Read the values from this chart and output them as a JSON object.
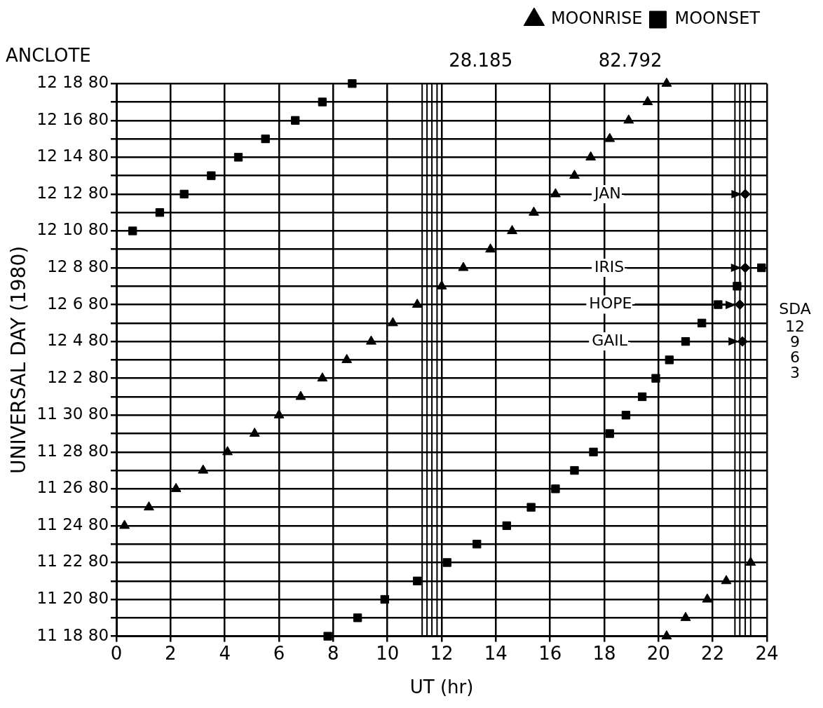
{
  "chart_data": {
    "type": "scatter",
    "orientation": "horizontal",
    "title": "ANCLOTE",
    "xlabel": "UT (hr)",
    "ylabel": "UNIVERSAL DAY (1980)",
    "categories": [
      "12 18 80",
      null,
      "12 16 80",
      null,
      "12 14 80",
      null,
      "12 12 80",
      null,
      "12 10 80",
      null,
      "12 8 80",
      null,
      "12 6 80",
      null,
      "12 4 80",
      null,
      "12 2 80",
      null,
      "11 30 80",
      null,
      "11 28 80",
      null,
      "11 26 80",
      null,
      "11 24 80",
      null,
      "11 22 80",
      null,
      "11 20 80",
      null,
      "11 18 80"
    ],
    "series": [
      {
        "name": "MOONRISE",
        "color": "#000000",
        "marker": "triangle",
        "values": [
          20.3,
          19.6,
          18.9,
          18.2,
          17.5,
          16.9,
          16.2,
          15.4,
          14.6,
          13.8,
          12.8,
          12.0,
          11.1,
          10.2,
          9.4,
          8.5,
          7.6,
          6.8,
          6.0,
          5.1,
          4.1,
          3.2,
          2.2,
          1.2,
          0.3,
          null,
          23.4,
          22.5,
          21.8,
          21.0,
          20.3
        ]
      },
      {
        "name": "MOONSET",
        "color": "#000000",
        "marker": "square",
        "values": [
          8.7,
          7.6,
          6.6,
          5.5,
          4.5,
          3.5,
          2.5,
          1.6,
          0.6,
          null,
          23.8,
          22.9,
          22.2,
          21.6,
          21.0,
          20.4,
          19.9,
          19.4,
          18.8,
          18.2,
          17.6,
          16.9,
          16.2,
          15.3,
          14.4,
          13.3,
          12.2,
          11.1,
          9.9,
          8.9,
          7.8
        ]
      },
      {
        "color": "#000000",
        "marker": "diamond",
        "values": [
          null,
          null,
          null,
          null,
          null,
          null,
          23.2,
          null,
          null,
          null,
          23.2,
          null,
          23.0,
          null,
          23.1,
          null,
          null,
          null,
          null,
          null,
          null,
          null,
          null,
          null,
          null,
          null,
          null,
          null,
          null,
          null,
          null
        ]
      }
    ],
    "xlim": [
      0,
      24
    ],
    "xticks": [
      0,
      2,
      4,
      6,
      8,
      10,
      12,
      14,
      16,
      18,
      20,
      22,
      24
    ],
    "grid": true,
    "legend": "top right",
    "ref_lines": [
      {
        "axis": "x",
        "value": 11.28,
        "color": "#000000"
      },
      {
        "axis": "x",
        "value": 11.46,
        "color": "#000000"
      },
      {
        "axis": "x",
        "value": 11.64,
        "color": "#000000"
      },
      {
        "axis": "x",
        "value": 11.83,
        "color": "#000000"
      },
      {
        "axis": "x",
        "value": 22.82,
        "color": "#000000"
      },
      {
        "axis": "x",
        "value": 23.0,
        "color": "#000000"
      },
      {
        "axis": "x",
        "value": 23.2,
        "color": "#000000"
      },
      {
        "axis": "x",
        "value": 23.4,
        "color": "#000000"
      }
    ],
    "annotations": [
      "28.185",
      "82.792",
      "SDA",
      "12",
      "9",
      "6",
      "3",
      "JAN",
      "IRIS",
      "HOPE",
      "GAIL"
    ]
  }
}
